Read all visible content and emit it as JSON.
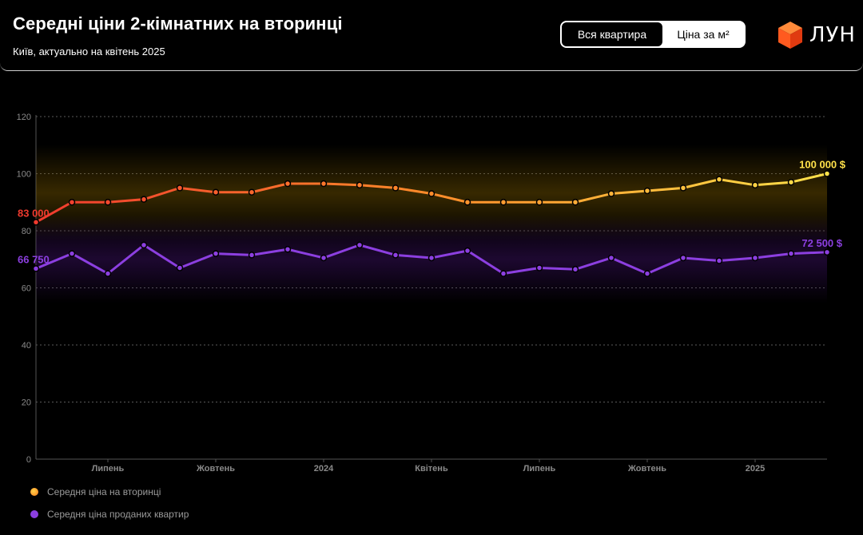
{
  "header": {
    "title": "Середні ціни 2-кімнатних на вторинці",
    "subtitle": "Київ, актуально на квітень 2025",
    "toggle": {
      "active_label": "Вся квартира",
      "inactive_label": "Ціна за м²"
    },
    "logo_text": "ЛУН",
    "logo_color": "#ff5a1f"
  },
  "legend": {
    "secondary_label": "Середня ціна на вторинці",
    "sold_label": "Середня ціна проданих квартир"
  },
  "chart_data": {
    "type": "line",
    "ylim": [
      0,
      120
    ],
    "yticks": [
      0,
      20,
      40,
      60,
      80,
      100,
      120
    ],
    "grid": true,
    "x_tick_labels": [
      {
        "label": "Липень",
        "index": 2
      },
      {
        "label": "Жовтень",
        "index": 5
      },
      {
        "label": "2024",
        "index": 8
      },
      {
        "label": "Квітень",
        "index": 11
      },
      {
        "label": "Липень",
        "index": 14
      },
      {
        "label": "Жовтень",
        "index": 17
      },
      {
        "label": "2025",
        "index": 20
      }
    ],
    "series": [
      {
        "name": "Середня ціна на вторинці",
        "color_start": "#f03a2e",
        "color_mid": "#ff8c2a",
        "color_end": "#ffe14a",
        "values": [
          83,
          90,
          90,
          91,
          95,
          93.5,
          93.5,
          96.5,
          96.5,
          96,
          95,
          93,
          90,
          90,
          90,
          90,
          93,
          94,
          95,
          98,
          96,
          97,
          100
        ],
        "start_label": "83 000",
        "end_label": "100 000 $"
      },
      {
        "name": "Середня ціна проданих квартир",
        "color": "#8c3fe0",
        "values": [
          66.75,
          72,
          65,
          75,
          67,
          72,
          71.5,
          73.5,
          70.5,
          75,
          71.5,
          70.5,
          73,
          65,
          67,
          66.5,
          70.5,
          65,
          70.5,
          69.5,
          70.5,
          72,
          72.5
        ],
        "start_label": "66 750",
        "end_label": "72 500 $"
      }
    ]
  }
}
